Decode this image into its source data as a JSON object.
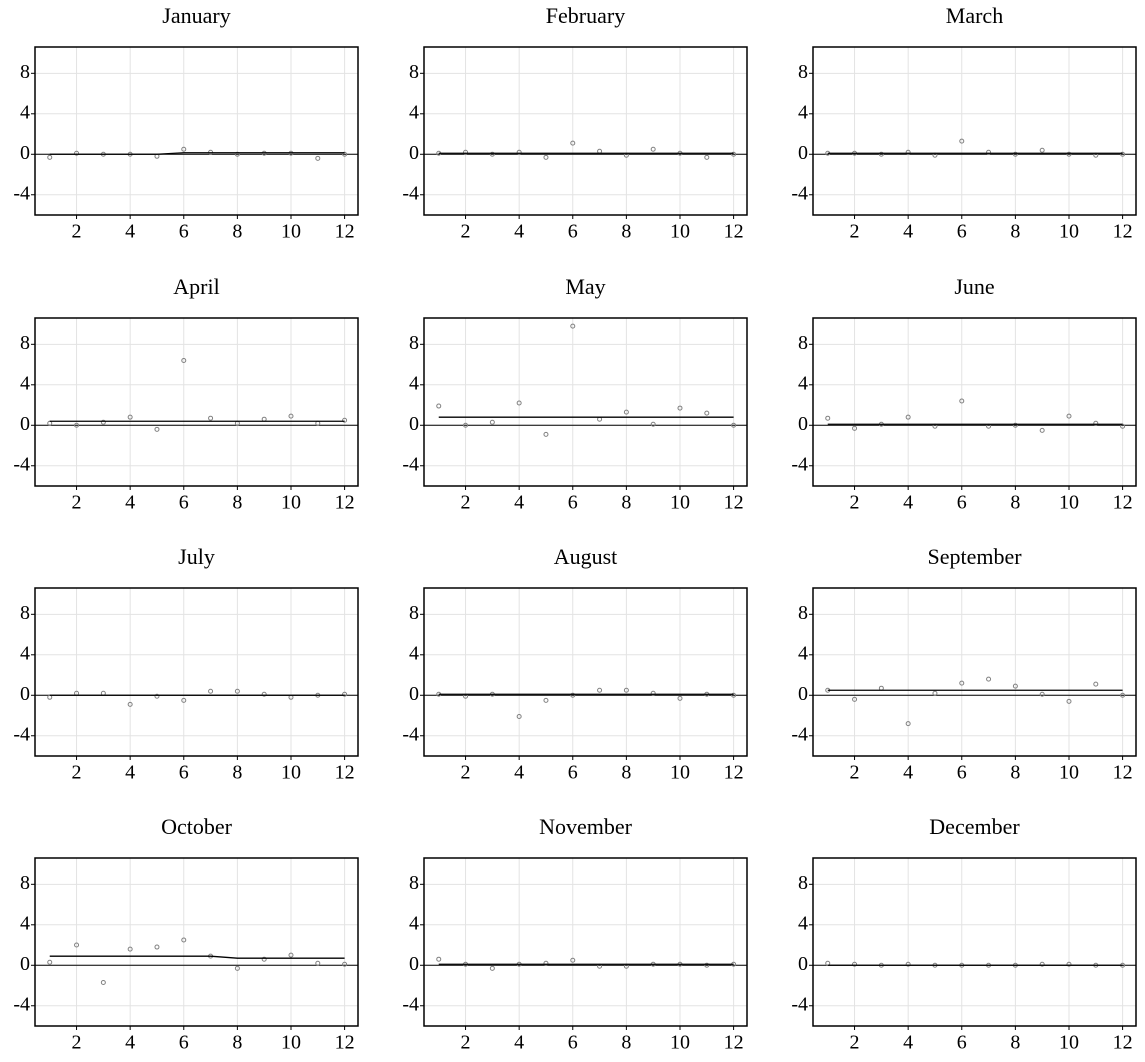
{
  "chart_data": [
    {
      "type": "scatter",
      "title": "January",
      "x": [
        1,
        2,
        3,
        4,
        5,
        6,
        7,
        8,
        9,
        10,
        11,
        12
      ],
      "xlim": [
        0.45,
        12.5
      ],
      "ylim": [
        -6,
        10.6
      ],
      "xticks": [
        2,
        4,
        6,
        8,
        10,
        12
      ],
      "yticks": [
        -4,
        0,
        4,
        8
      ],
      "grid": true,
      "hline": 0,
      "series": [
        {
          "mode": "markers",
          "color": "#808080",
          "values": [
            -0.3,
            0.1,
            0,
            0,
            -0.2,
            0.5,
            0.2,
            0,
            0.1,
            0.1,
            -0.4,
            0
          ]
        },
        {
          "mode": "line",
          "color": "#000000",
          "values": [
            0,
            0,
            0,
            0,
            0,
            0.15,
            0.15,
            0.15,
            0.15,
            0.15,
            0.15,
            0.15
          ]
        }
      ]
    },
    {
      "type": "scatter",
      "title": "February",
      "x": [
        1,
        2,
        3,
        4,
        5,
        6,
        7,
        8,
        9,
        10,
        11,
        12
      ],
      "xlim": [
        0.45,
        12.5
      ],
      "ylim": [
        -6,
        10.6
      ],
      "xticks": [
        2,
        4,
        6,
        8,
        10,
        12
      ],
      "yticks": [
        -4,
        0,
        4,
        8
      ],
      "grid": true,
      "hline": 0,
      "series": [
        {
          "mode": "markers",
          "color": "#808080",
          "values": [
            0.1,
            0.2,
            0,
            0.2,
            -0.3,
            1.1,
            0.3,
            -0.1,
            0.5,
            0.1,
            -0.3,
            0
          ]
        },
        {
          "mode": "line",
          "color": "#000000",
          "values": [
            0.1,
            0.1,
            0.1,
            0.1,
            0.1,
            0.1,
            0.1,
            0.1,
            0.1,
            0.1,
            0.1,
            0.1
          ]
        }
      ]
    },
    {
      "type": "scatter",
      "title": "March",
      "x": [
        1,
        2,
        3,
        4,
        5,
        6,
        7,
        8,
        9,
        10,
        11,
        12
      ],
      "xlim": [
        0.45,
        12.5
      ],
      "ylim": [
        -6,
        10.6
      ],
      "xticks": [
        2,
        4,
        6,
        8,
        10,
        12
      ],
      "yticks": [
        -4,
        0,
        4,
        8
      ],
      "grid": true,
      "hline": 0,
      "series": [
        {
          "mode": "markers",
          "color": "#808080",
          "values": [
            0.1,
            0.1,
            0,
            0.2,
            -0.1,
            1.3,
            0.2,
            0,
            0.4,
            0,
            -0.1,
            0
          ]
        },
        {
          "mode": "line",
          "color": "#000000",
          "values": [
            0.1,
            0.1,
            0.1,
            0.1,
            0.1,
            0.1,
            0.1,
            0.1,
            0.1,
            0.1,
            0.1,
            0.1
          ]
        }
      ]
    },
    {
      "type": "scatter",
      "title": "April",
      "x": [
        1,
        2,
        3,
        4,
        5,
        6,
        7,
        8,
        9,
        10,
        11,
        12
      ],
      "xlim": [
        0.45,
        12.5
      ],
      "ylim": [
        -6,
        10.6
      ],
      "xticks": [
        2,
        4,
        6,
        8,
        10,
        12
      ],
      "yticks": [
        -4,
        0,
        4,
        8
      ],
      "grid": true,
      "hline": 0,
      "series": [
        {
          "mode": "markers",
          "color": "#808080",
          "values": [
            0.2,
            0,
            0.3,
            0.8,
            -0.4,
            6.4,
            0.7,
            0.2,
            0.6,
            0.9,
            0.2,
            0.5
          ]
        },
        {
          "mode": "line",
          "color": "#000000",
          "values": [
            0.4,
            0.4,
            0.4,
            0.4,
            0.4,
            0.4,
            0.4,
            0.4,
            0.4,
            0.4,
            0.4,
            0.4
          ]
        }
      ]
    },
    {
      "type": "scatter",
      "title": "May",
      "x": [
        1,
        2,
        3,
        4,
        5,
        6,
        7,
        8,
        9,
        10,
        11,
        12
      ],
      "xlim": [
        0.45,
        12.5
      ],
      "ylim": [
        -6,
        10.6
      ],
      "xticks": [
        2,
        4,
        6,
        8,
        10,
        12
      ],
      "yticks": [
        -4,
        0,
        4,
        8
      ],
      "grid": true,
      "hline": 0,
      "series": [
        {
          "mode": "markers",
          "color": "#808080",
          "values": [
            1.9,
            0,
            0.3,
            2.2,
            -0.9,
            9.8,
            0.6,
            1.3,
            0.1,
            1.7,
            1.2,
            0
          ]
        },
        {
          "mode": "line",
          "color": "#000000",
          "values": [
            0.8,
            0.8,
            0.8,
            0.8,
            0.8,
            0.8,
            0.8,
            0.8,
            0.8,
            0.8,
            0.8,
            0.8
          ]
        }
      ]
    },
    {
      "type": "scatter",
      "title": "June",
      "x": [
        1,
        2,
        3,
        4,
        5,
        6,
        7,
        8,
        9,
        10,
        11,
        12
      ],
      "xlim": [
        0.45,
        12.5
      ],
      "ylim": [
        -6,
        10.6
      ],
      "xticks": [
        2,
        4,
        6,
        8,
        10,
        12
      ],
      "yticks": [
        -4,
        0,
        4,
        8
      ],
      "grid": true,
      "hline": 0,
      "series": [
        {
          "mode": "markers",
          "color": "#808080",
          "values": [
            0.7,
            -0.3,
            0.1,
            0.8,
            -0.1,
            2.4,
            -0.1,
            0,
            -0.5,
            0.9,
            0.2,
            -0.1
          ]
        },
        {
          "mode": "line",
          "color": "#000000",
          "values": [
            0.1,
            0.1,
            0.1,
            0.1,
            0.1,
            0.1,
            0.1,
            0.1,
            0.1,
            0.1,
            0.1,
            0.1
          ]
        }
      ]
    },
    {
      "type": "scatter",
      "title": "July",
      "x": [
        1,
        2,
        3,
        4,
        5,
        6,
        7,
        8,
        9,
        10,
        11,
        12
      ],
      "xlim": [
        0.45,
        12.5
      ],
      "ylim": [
        -6,
        10.6
      ],
      "xticks": [
        2,
        4,
        6,
        8,
        10,
        12
      ],
      "yticks": [
        -4,
        0,
        4,
        8
      ],
      "grid": true,
      "hline": 0,
      "series": [
        {
          "mode": "markers",
          "color": "#808080",
          "values": [
            -0.2,
            0.2,
            0.2,
            -0.9,
            -0.1,
            -0.5,
            0.4,
            0.4,
            0.1,
            -0.2,
            0,
            0.1
          ]
        },
        {
          "mode": "line",
          "color": "#000000",
          "values": [
            0,
            0,
            0,
            0,
            0,
            0,
            0,
            0,
            0,
            0,
            0,
            0
          ]
        }
      ]
    },
    {
      "type": "scatter",
      "title": "August",
      "x": [
        1,
        2,
        3,
        4,
        5,
        6,
        7,
        8,
        9,
        10,
        11,
        12
      ],
      "xlim": [
        0.45,
        12.5
      ],
      "ylim": [
        -6,
        10.6
      ],
      "xticks": [
        2,
        4,
        6,
        8,
        10,
        12
      ],
      "yticks": [
        -4,
        0,
        4,
        8
      ],
      "grid": true,
      "hline": 0,
      "series": [
        {
          "mode": "markers",
          "color": "#808080",
          "values": [
            0.1,
            -0.1,
            0.1,
            -2.1,
            -0.5,
            0,
            0.5,
            0.5,
            0.2,
            -0.3,
            0.1,
            0
          ]
        },
        {
          "mode": "line",
          "color": "#000000",
          "values": [
            0.1,
            0.1,
            0.1,
            0.1,
            0.1,
            0.1,
            0.1,
            0.1,
            0.1,
            0.1,
            0.1,
            0.1
          ]
        }
      ]
    },
    {
      "type": "scatter",
      "title": "September",
      "x": [
        1,
        2,
        3,
        4,
        5,
        6,
        7,
        8,
        9,
        10,
        11,
        12
      ],
      "xlim": [
        0.45,
        12.5
      ],
      "ylim": [
        -6,
        10.6
      ],
      "xticks": [
        2,
        4,
        6,
        8,
        10,
        12
      ],
      "yticks": [
        -4,
        0,
        4,
        8
      ],
      "grid": true,
      "hline": 0,
      "series": [
        {
          "mode": "markers",
          "color": "#808080",
          "values": [
            0.5,
            -0.4,
            0.7,
            -2.8,
            0.2,
            1.2,
            1.6,
            0.9,
            0.1,
            -0.6,
            1.1,
            0
          ]
        },
        {
          "mode": "line",
          "color": "#000000",
          "values": [
            0.5,
            0.5,
            0.5,
            0.5,
            0.5,
            0.5,
            0.5,
            0.5,
            0.5,
            0.5,
            0.5,
            0.5
          ]
        }
      ]
    },
    {
      "type": "scatter",
      "title": "October",
      "x": [
        1,
        2,
        3,
        4,
        5,
        6,
        7,
        8,
        9,
        10,
        11,
        12
      ],
      "xlim": [
        0.45,
        12.5
      ],
      "ylim": [
        -6,
        10.6
      ],
      "xticks": [
        2,
        4,
        6,
        8,
        10,
        12
      ],
      "yticks": [
        -4,
        0,
        4,
        8
      ],
      "grid": true,
      "hline": 0,
      "series": [
        {
          "mode": "markers",
          "color": "#808080",
          "values": [
            0.3,
            2.0,
            -1.7,
            1.6,
            1.8,
            2.5,
            0.9,
            -0.3,
            0.6,
            1.0,
            0.2,
            0.1
          ]
        },
        {
          "mode": "line",
          "color": "#000000",
          "values": [
            0.9,
            0.9,
            0.9,
            0.9,
            0.9,
            0.9,
            0.9,
            0.7,
            0.7,
            0.7,
            0.7,
            0.7
          ]
        }
      ]
    },
    {
      "type": "scatter",
      "title": "November",
      "x": [
        1,
        2,
        3,
        4,
        5,
        6,
        7,
        8,
        9,
        10,
        11,
        12
      ],
      "xlim": [
        0.45,
        12.5
      ],
      "ylim": [
        -6,
        10.6
      ],
      "xticks": [
        2,
        4,
        6,
        8,
        10,
        12
      ],
      "yticks": [
        -4,
        0,
        4,
        8
      ],
      "grid": true,
      "hline": 0,
      "series": [
        {
          "mode": "markers",
          "color": "#808080",
          "values": [
            0.6,
            0.1,
            -0.3,
            0.1,
            0.2,
            0.5,
            -0.1,
            -0.1,
            0.1,
            0.1,
            0,
            0.1
          ]
        },
        {
          "mode": "line",
          "color": "#000000",
          "values": [
            0.1,
            0.1,
            0.1,
            0.1,
            0.1,
            0.1,
            0.1,
            0.1,
            0.1,
            0.1,
            0.1,
            0.1
          ]
        }
      ]
    },
    {
      "type": "scatter",
      "title": "December",
      "x": [
        1,
        2,
        3,
        4,
        5,
        6,
        7,
        8,
        9,
        10,
        11,
        12
      ],
      "xlim": [
        0.45,
        12.5
      ],
      "ylim": [
        -6,
        10.6
      ],
      "xticks": [
        2,
        4,
        6,
        8,
        10,
        12
      ],
      "yticks": [
        -4,
        0,
        4,
        8
      ],
      "grid": true,
      "hline": 0,
      "series": [
        {
          "mode": "markers",
          "color": "#808080",
          "values": [
            0.2,
            0.1,
            0,
            0.1,
            0,
            0,
            0,
            0,
            0.1,
            0.1,
            0,
            0
          ]
        },
        {
          "mode": "line",
          "color": "#000000",
          "values": [
            0,
            0,
            0,
            0,
            0,
            0,
            0,
            0,
            0,
            0,
            0,
            0
          ]
        }
      ]
    }
  ]
}
